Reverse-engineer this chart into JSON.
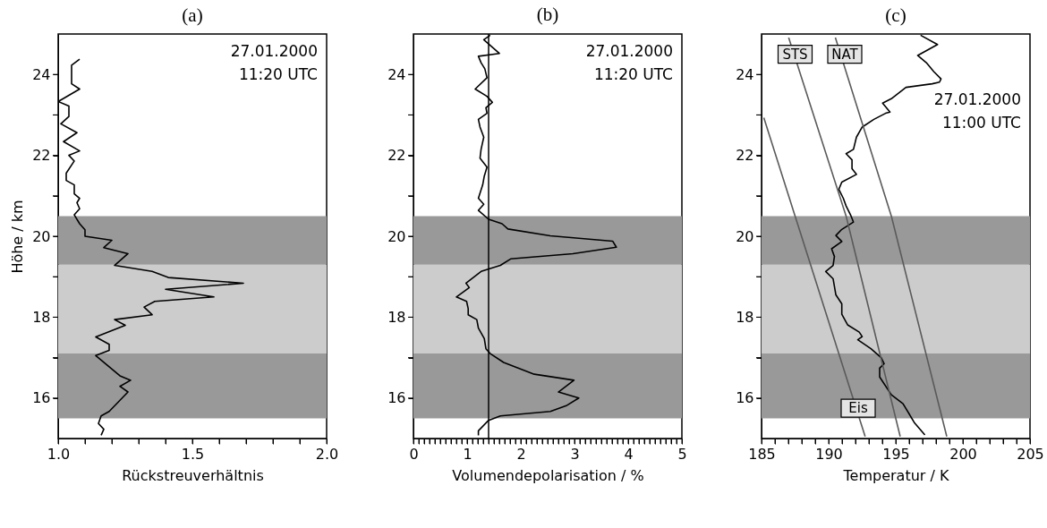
{
  "chart_data": [
    {
      "type": "line",
      "title": "(a)",
      "xlabel": "Rückstreuverhältnis",
      "ylabel": "Höhe / km",
      "xlim": [
        1,
        2
      ],
      "ylim": [
        15,
        25
      ],
      "xticks": [
        {
          "value": 1,
          "label": "1.0"
        },
        {
          "value": 1.1,
          "label": null
        },
        {
          "value": 1.2,
          "label": null
        },
        {
          "value": 1.3,
          "label": null
        },
        {
          "value": 1.4,
          "label": null
        },
        1.5,
        {
          "value": 1.6,
          "label": null
        },
        {
          "value": 1.7,
          "label": null
        },
        {
          "value": 1.8,
          "label": null
        },
        {
          "value": 1.9,
          "label": null
        },
        {
          "value": 2,
          "label": "2.0"
        }
      ],
      "yticks": [
        16,
        {
          "value": 17,
          "label": null
        },
        18,
        {
          "value": 19,
          "label": null
        },
        20,
        {
          "value": 21,
          "label": null
        },
        22,
        {
          "value": 23,
          "label": null
        },
        24
      ],
      "bands": [
        {
          "axis": "y",
          "from": 15.5,
          "to": 17.1,
          "color": "#999999"
        },
        {
          "axis": "y",
          "from": 17.1,
          "to": 19.3,
          "color": "#cccccc"
        },
        {
          "axis": "y",
          "from": 19.3,
          "to": 20.5,
          "color": "#999999"
        }
      ],
      "annotations": [
        "27.01.2000",
        "11:20 UTC"
      ],
      "series": [
        {
          "color": "#000000",
          "x": [
            1.08,
            1.05,
            1.05,
            1.08,
            1.0,
            1.04,
            1.04,
            1.01,
            1.07,
            1.02,
            1.08,
            1.04,
            1.06,
            1.03,
            1.03,
            1.06,
            1.06,
            1.08,
            1.07,
            1.08,
            1.06,
            1.08,
            1.1,
            1.1,
            1.2,
            1.17,
            1.26,
            1.21,
            1.35,
            1.41,
            1.69,
            1.4,
            1.58,
            1.36,
            1.32,
            1.35,
            1.21,
            1.25,
            1.14,
            1.19,
            1.19,
            1.14,
            1.23,
            1.27,
            1.23,
            1.26,
            1.19,
            1.16,
            1.15,
            1.17,
            1.16
          ],
          "values": [
            24.38,
            24.23,
            23.77,
            23.64,
            23.33,
            23.22,
            22.96,
            22.78,
            22.56,
            22.34,
            22.11,
            22.0,
            21.86,
            21.56,
            21.38,
            21.27,
            21.05,
            20.94,
            20.83,
            20.68,
            20.53,
            20.31,
            20.16,
            20.0,
            19.9,
            19.72,
            19.57,
            19.28,
            19.13,
            18.98,
            18.84,
            18.69,
            18.5,
            18.39,
            18.25,
            18.06,
            17.94,
            17.8,
            17.51,
            17.33,
            17.18,
            17.05,
            16.55,
            16.44,
            16.29,
            16.15,
            15.67,
            15.56,
            15.37,
            15.23,
            15.08
          ]
        }
      ]
    },
    {
      "type": "line",
      "title": "(b)",
      "xlabel": "Volumendepolarisation / %",
      "xlim": [
        0,
        5
      ],
      "ylim": [
        15,
        25
      ],
      "xticks": [
        0,
        {
          "value": 0.1,
          "label": null
        },
        {
          "value": 0.2,
          "label": null
        },
        {
          "value": 0.3,
          "label": null
        },
        {
          "value": 0.4,
          "label": null
        },
        {
          "value": 0.5,
          "label": null
        },
        {
          "value": 0.6,
          "label": null
        },
        {
          "value": 0.7,
          "label": null
        },
        {
          "value": 0.8,
          "label": null
        },
        {
          "value": 0.9,
          "label": null
        },
        1,
        {
          "value": 1.1,
          "label": null
        },
        {
          "value": 1.2,
          "label": null
        },
        {
          "value": 1.3,
          "label": null
        },
        {
          "value": 1.4,
          "label": null
        },
        {
          "value": 1.5,
          "label": null
        },
        {
          "value": 1.6,
          "label": null
        },
        {
          "value": 1.7,
          "label": null
        },
        {
          "value": 1.8,
          "label": null
        },
        {
          "value": 1.9,
          "label": null
        },
        2,
        {
          "value": 2.1,
          "label": null
        },
        {
          "value": 2.2,
          "label": null
        },
        {
          "value": 2.3,
          "label": null
        },
        {
          "value": 2.4,
          "label": null
        },
        {
          "value": 2.5,
          "label": null
        },
        {
          "value": 2.6,
          "label": null
        },
        {
          "value": 2.7,
          "label": null
        },
        {
          "value": 2.8,
          "label": null
        },
        {
          "value": 2.9,
          "label": null
        },
        3,
        {
          "value": 3.1,
          "label": null
        },
        {
          "value": 3.2,
          "label": null
        },
        {
          "value": 3.3,
          "label": null
        },
        {
          "value": 3.4,
          "label": null
        },
        {
          "value": 3.5,
          "label": null
        },
        {
          "value": 3.6,
          "label": null
        },
        {
          "value": 3.7,
          "label": null
        },
        {
          "value": 3.8,
          "label": null
        },
        {
          "value": 3.9,
          "label": null
        },
        4,
        {
          "value": 4.1,
          "label": null
        },
        {
          "value": 4.2,
          "label": null
        },
        {
          "value": 4.3,
          "label": null
        },
        {
          "value": 4.4,
          "label": null
        },
        {
          "value": 4.5,
          "label": null
        },
        {
          "value": 4.6,
          "label": null
        },
        {
          "value": 4.7,
          "label": null
        },
        {
          "value": 4.8,
          "label": null
        },
        {
          "value": 4.9,
          "label": null
        },
        5
      ],
      "yticks": [
        16,
        {
          "value": 17,
          "label": null
        },
        18,
        {
          "value": 19,
          "label": null
        },
        20,
        {
          "value": 21,
          "label": null
        },
        22,
        {
          "value": 23,
          "label": null
        },
        24
      ],
      "bands": [
        {
          "axis": "y",
          "from": 15.5,
          "to": 17.1,
          "color": "#999999"
        },
        {
          "axis": "y",
          "from": 17.1,
          "to": 19.3,
          "color": "#cccccc"
        },
        {
          "axis": "y",
          "from": 19.3,
          "to": 20.5,
          "color": "#999999"
        }
      ],
      "ref_lines": [
        {
          "axis": "x",
          "value": 1.4,
          "color": "#000000"
        }
      ],
      "annotations": [
        "27.01.2000",
        "11:20 UTC"
      ],
      "series": [
        {
          "color": "#000000",
          "x": [
            1.43,
            1.31,
            1.6,
            1.21,
            1.26,
            1.33,
            1.37,
            1.15,
            1.37,
            1.47,
            1.35,
            1.37,
            1.21,
            1.24,
            1.31,
            1.26,
            1.24,
            1.37,
            1.32,
            1.29,
            1.21,
            1.31,
            1.21,
            1.4,
            1.65,
            1.76,
            2.55,
            3.71,
            3.78,
            2.97,
            1.81,
            1.62,
            1.26,
            0.98,
            1.04,
            0.8,
            0.99,
            1.02,
            1.02,
            1.18,
            1.21,
            1.32,
            1.35,
            1.43,
            1.68,
            2.25,
            2.99,
            2.7,
            3.08,
            2.86,
            2.55,
            1.62,
            1.4,
            1.21,
            1.21
          ],
          "values": [
            24.97,
            24.86,
            24.52,
            24.45,
            24.29,
            24.14,
            23.92,
            23.64,
            23.46,
            23.31,
            23.18,
            23.04,
            22.89,
            22.7,
            22.45,
            22.15,
            21.93,
            21.71,
            21.49,
            21.27,
            20.94,
            20.79,
            20.64,
            20.42,
            20.31,
            20.18,
            20.01,
            19.88,
            19.73,
            19.57,
            19.44,
            19.28,
            19.13,
            18.84,
            18.73,
            18.5,
            18.39,
            18.21,
            18.06,
            17.94,
            17.73,
            17.47,
            17.22,
            17.1,
            16.88,
            16.59,
            16.44,
            16.15,
            16.0,
            15.82,
            15.67,
            15.56,
            15.45,
            15.19,
            15.08
          ]
        }
      ]
    },
    {
      "type": "line",
      "title": "(c)",
      "xlabel": "Temperatur / K",
      "xlim": [
        185,
        205
      ],
      "ylim": [
        15,
        25
      ],
      "xticks": [
        185,
        {
          "value": 186,
          "label": null
        },
        {
          "value": 187,
          "label": null
        },
        {
          "value": 188,
          "label": null
        },
        {
          "value": 189,
          "label": null
        },
        190,
        {
          "value": 191,
          "label": null
        },
        {
          "value": 192,
          "label": null
        },
        {
          "value": 193,
          "label": null
        },
        {
          "value": 194,
          "label": null
        },
        195,
        {
          "value": 196,
          "label": null
        },
        {
          "value": 197,
          "label": null
        },
        {
          "value": 198,
          "label": null
        },
        {
          "value": 199,
          "label": null
        },
        200,
        {
          "value": 201,
          "label": null
        },
        {
          "value": 202,
          "label": null
        },
        {
          "value": 203,
          "label": null
        },
        {
          "value": 204,
          "label": null
        },
        205
      ],
      "yticks": [
        16,
        {
          "value": 17,
          "label": null
        },
        18,
        {
          "value": 19,
          "label": null
        },
        20,
        {
          "value": 21,
          "label": null
        },
        22,
        {
          "value": 23,
          "label": null
        },
        24
      ],
      "bands": [
        {
          "axis": "y",
          "from": 15.5,
          "to": 17.1,
          "color": "#999999"
        },
        {
          "axis": "y",
          "from": 17.1,
          "to": 19.3,
          "color": "#cccccc"
        },
        {
          "axis": "y",
          "from": 19.3,
          "to": 20.5,
          "color": "#999999"
        }
      ],
      "annotations": [
        "27.01.2000",
        "11:00 UTC",
        {
          "text": "STS",
          "x": 187.5,
          "y": 24.5
        },
        {
          "text": "NAT",
          "x": 191.2,
          "y": 24.5
        },
        {
          "text": "Eis",
          "x": 192.2,
          "y": 15.75
        }
      ],
      "series": [
        {
          "color": "#000000",
          "x": [
            196.85,
            198.11,
            196.63,
            197.28,
            197.83,
            198.37,
            198.26,
            197.72,
            195.76,
            194.67,
            194.02,
            194.57,
            194.24,
            193.37,
            192.5,
            192.07,
            191.85,
            191.3,
            191.74,
            191.74,
            192.07,
            190.98,
            190.76,
            191.09,
            191.3,
            191.63,
            191.85,
            190.98,
            190.54,
            190.98,
            190.22,
            190.43,
            190.33,
            189.78,
            190.33,
            190.54,
            190.98,
            190.98,
            191.41,
            192.28,
            192.5,
            192.17,
            193.15,
            193.91,
            194.13,
            193.8,
            193.8,
            194.67,
            195.54,
            196.41,
            197.17
          ],
          "values": [
            24.97,
            24.74,
            24.47,
            24.29,
            24.07,
            23.89,
            23.81,
            23.77,
            23.68,
            23.4,
            23.29,
            23.07,
            23.04,
            22.89,
            22.7,
            22.45,
            22.15,
            22.04,
            21.89,
            21.67,
            21.53,
            21.34,
            21.16,
            20.94,
            20.75,
            20.53,
            20.35,
            20.17,
            20.02,
            19.87,
            19.69,
            19.5,
            19.28,
            19.13,
            18.95,
            18.55,
            18.33,
            18.07,
            17.81,
            17.63,
            17.52,
            17.44,
            17.22,
            17.0,
            16.85,
            16.74,
            16.52,
            16.08,
            15.86,
            15.38,
            15.09
          ]
        },
        {
          "color": "#5a5a5a",
          "x": [
            185.17,
            187.5,
            192.72
          ],
          "values": [
            22.93,
            20.5,
            15.05
          ]
        },
        {
          "color": "#5a5a5a",
          "x": [
            187.02,
            191.3,
            195.33
          ],
          "values": [
            24.91,
            20.5,
            15.05
          ]
        },
        {
          "color": "#5a5a5a",
          "x": [
            190.5,
            194.67,
            198.8
          ],
          "values": [
            24.91,
            20.5,
            15.05
          ]
        }
      ]
    }
  ]
}
